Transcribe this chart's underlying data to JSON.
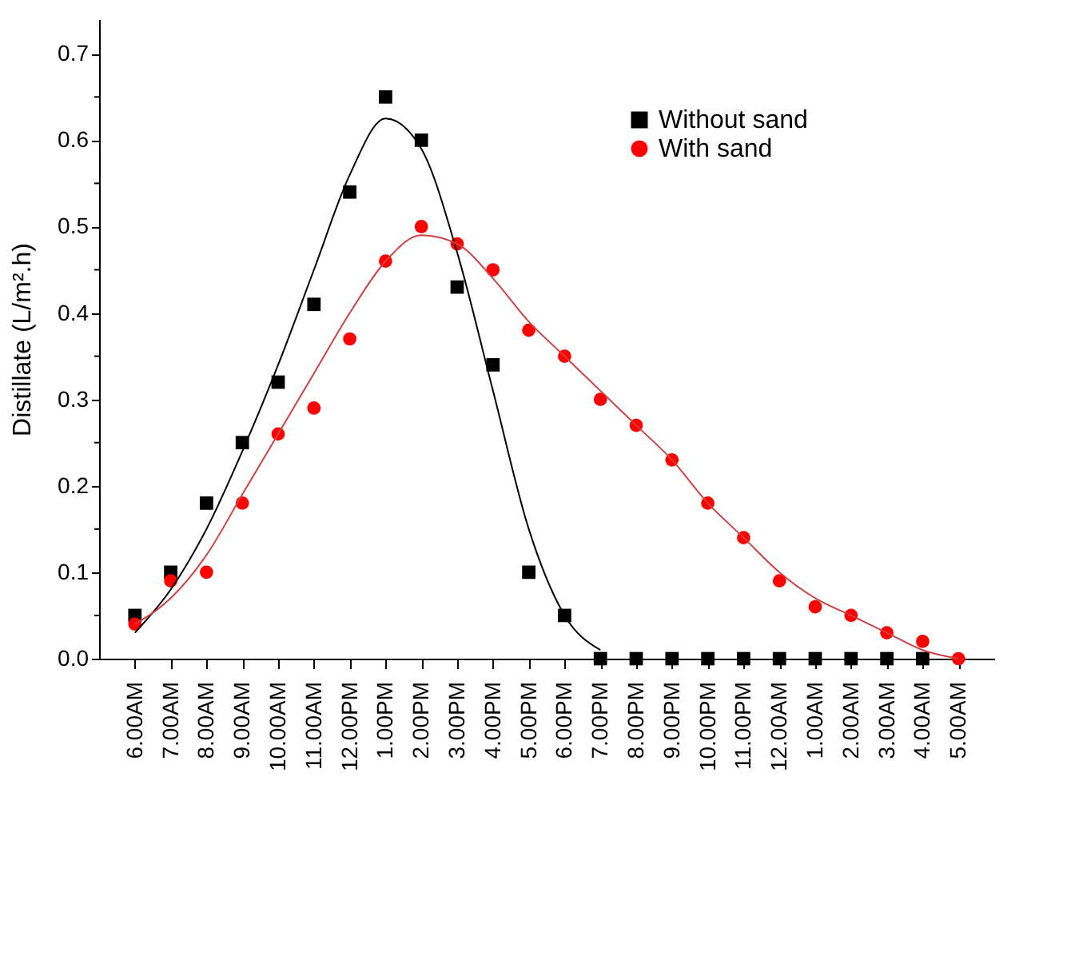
{
  "chart_data": {
    "type": "scatter",
    "ylabel": "Distillate (L/m².h)",
    "categories": [
      "6.00AM",
      "7.00AM",
      "8.00AM",
      "9.00AM",
      "10.00AM",
      "11.00AM",
      "12.00PM",
      "1.00PM",
      "2.00PM",
      "3.00PM",
      "4.00PM",
      "5.00PM",
      "6.00PM",
      "7.00PM",
      "8.00PM",
      "9.00PM",
      "10.00PM",
      "11.00PM",
      "12.00AM",
      "1.00AM",
      "2.00AM",
      "3.00AM",
      "4.00AM",
      "5.00AM"
    ],
    "series": [
      {
        "name": "Without sand",
        "type": "scatter",
        "marker": "square",
        "color": "#000000",
        "values": [
          0.05,
          0.1,
          0.18,
          0.25,
          0.32,
          0.41,
          0.54,
          0.65,
          0.6,
          0.43,
          0.34,
          0.1,
          0.05,
          0,
          0,
          0,
          0,
          0,
          0,
          0,
          0,
          0,
          0,
          null
        ]
      },
      {
        "name": "With sand",
        "type": "scatter",
        "marker": "circle",
        "color": "#ff0000",
        "values": [
          0.04,
          0.09,
          0.1,
          0.18,
          0.26,
          0.29,
          0.37,
          0.46,
          0.5,
          0.48,
          0.45,
          0.38,
          0.35,
          0.3,
          0.27,
          0.23,
          0.18,
          0.14,
          0.09,
          0.06,
          0.05,
          0.03,
          0.02,
          0.0
        ]
      },
      {
        "type": "line",
        "marker": "none",
        "color": "#000000",
        "values": [
          0.03,
          0.08,
          0.15,
          0.24,
          0.34,
          0.45,
          0.56,
          0.625,
          0.59,
          0.47,
          0.31,
          0.15,
          0.05,
          0.01,
          null,
          null,
          null,
          null,
          null,
          null,
          null,
          null,
          null,
          null
        ]
      },
      {
        "type": "line",
        "marker": "none",
        "color": "#d04040",
        "values": [
          0.04,
          0.07,
          0.12,
          0.19,
          0.26,
          0.33,
          0.4,
          0.46,
          0.49,
          0.48,
          0.44,
          0.39,
          0.35,
          0.31,
          0.27,
          0.23,
          0.18,
          0.14,
          0.1,
          0.07,
          0.05,
          0.03,
          0.01,
          0.0
        ]
      }
    ],
    "ylim": [
      0,
      0.74
    ],
    "yticks": [
      {
        "value": 0,
        "label": "0.0"
      },
      {
        "value": 0.05,
        "label": null
      },
      0.1,
      {
        "value": 0.15,
        "label": null
      },
      0.2,
      {
        "value": 0.25,
        "label": null
      },
      0.3,
      {
        "value": 0.35,
        "label": null
      },
      0.4,
      {
        "value": 0.45,
        "label": null
      },
      0.5,
      {
        "value": 0.55,
        "label": null
      },
      0.6,
      {
        "value": 0.65,
        "label": null
      },
      0.7
    ],
    "legend": "top right",
    "grid": false
  }
}
